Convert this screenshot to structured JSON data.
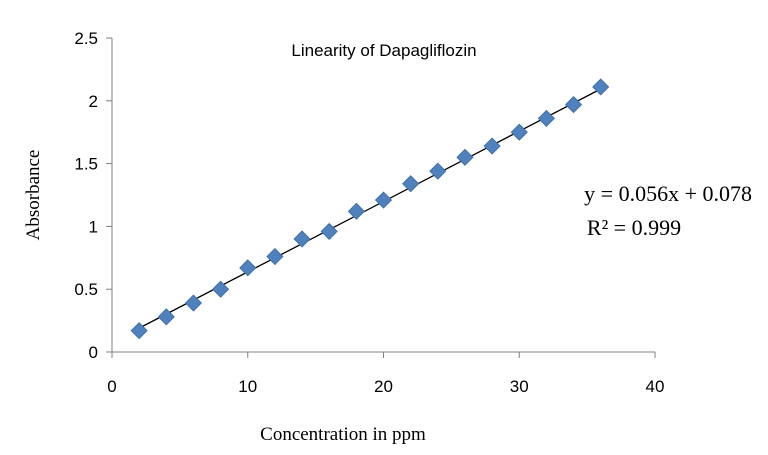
{
  "chart_data": {
    "type": "scatter",
    "title": "Linearity  of Dapagliflozin",
    "xlabel": "Concentration in ppm",
    "ylabel": "Absorbance",
    "xlim": [
      0,
      40
    ],
    "ylim": [
      0,
      2.5
    ],
    "x_ticks": [
      "0",
      "10",
      "20",
      "30",
      "40"
    ],
    "y_ticks": [
      "0",
      "0.5",
      "1",
      "1.5",
      "2",
      "2.5"
    ],
    "grid": false,
    "series": [
      {
        "marker": "diamond",
        "color": "#4f81bd",
        "points": [
          [
            2,
            0.17
          ],
          [
            4,
            0.28
          ],
          [
            6,
            0.39
          ],
          [
            8,
            0.5
          ],
          [
            10,
            0.67
          ],
          [
            12,
            0.76
          ],
          [
            14,
            0.9
          ],
          [
            16,
            0.96
          ],
          [
            18,
            1.12
          ],
          [
            20,
            1.21
          ],
          [
            22,
            1.34
          ],
          [
            24,
            1.44
          ],
          [
            26,
            1.55
          ],
          [
            28,
            1.64
          ],
          [
            30,
            1.75
          ],
          [
            32,
            1.86
          ],
          [
            34,
            1.97
          ],
          [
            36,
            2.11
          ]
        ]
      }
    ],
    "trendline": {
      "type": "linear",
      "slope": 0.056,
      "intercept": 0.078,
      "x_range": [
        2,
        36
      ],
      "color": "#000000"
    },
    "annotations": {
      "equation": "y = 0.056x + 0.078",
      "r_squared": "R² = 0.999"
    }
  }
}
